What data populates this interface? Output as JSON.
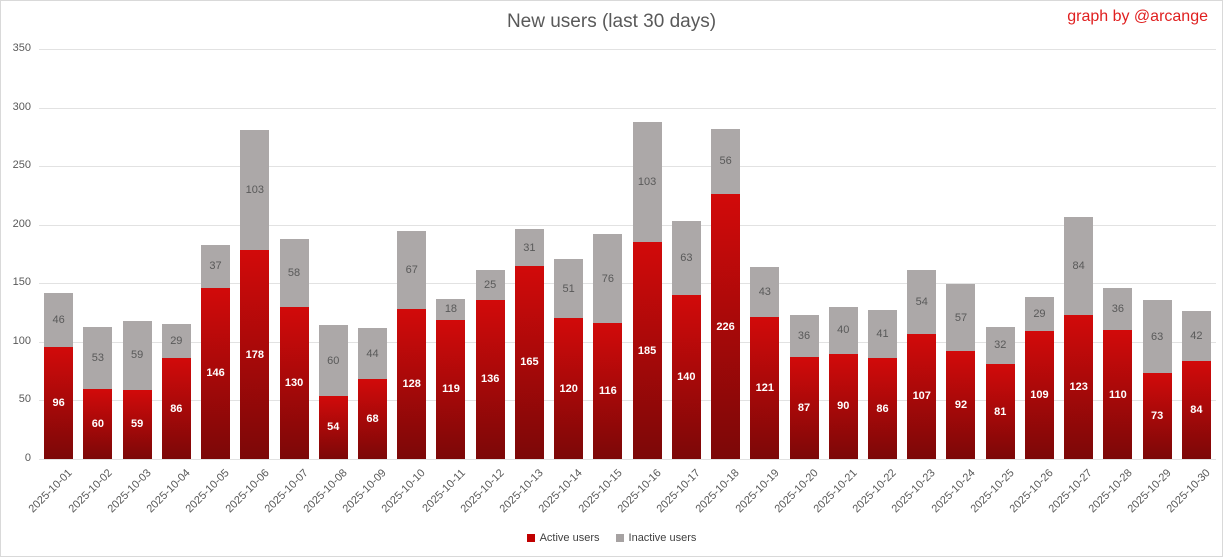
{
  "title": "New users (last 30 days)",
  "attribution": "graph by @arcange",
  "colors": {
    "active_top": "#d20a0a",
    "active_bottom": "#7c0808",
    "inactive": "#aca8a8",
    "legend_active": "#c00000",
    "legend_inactive": "#a6a2a2",
    "gridline": "#e2e2e2",
    "axis_text": "#595959",
    "title_text": "#595959",
    "attribution_text": "#e02020"
  },
  "chart_data": {
    "type": "bar",
    "stacked": true,
    "title": "New users (last 30 days)",
    "xlabel": "",
    "ylabel": "",
    "ylim": [
      0,
      350
    ],
    "yticks": [
      0,
      50,
      100,
      150,
      200,
      250,
      300,
      350
    ],
    "grid": true,
    "legend_position": "bottom",
    "categories": [
      "2025-10-01",
      "2025-10-02",
      "2025-10-03",
      "2025-10-04",
      "2025-10-05",
      "2025-10-06",
      "2025-10-07",
      "2025-10-08",
      "2025-10-09",
      "2025-10-10",
      "2025-10-11",
      "2025-10-12",
      "2025-10-13",
      "2025-10-14",
      "2025-10-15",
      "2025-10-16",
      "2025-10-17",
      "2025-10-18",
      "2025-10-19",
      "2025-10-20",
      "2025-10-21",
      "2025-10-22",
      "2025-10-23",
      "2025-10-24",
      "2025-10-25",
      "2025-10-26",
      "2025-10-27",
      "2025-10-28",
      "2025-10-29",
      "2025-10-30"
    ],
    "series": [
      {
        "name": "Active users",
        "values": [
          96,
          60,
          59,
          86,
          146,
          178,
          130,
          54,
          68,
          128,
          119,
          136,
          165,
          120,
          116,
          185,
          140,
          226,
          121,
          87,
          90,
          86,
          107,
          92,
          81,
          109,
          123,
          110,
          73,
          84
        ]
      },
      {
        "name": "Inactive users",
        "values": [
          46,
          53,
          59,
          29,
          37,
          103,
          58,
          60,
          44,
          67,
          18,
          25,
          31,
          51,
          76,
          103,
          63,
          56,
          43,
          36,
          40,
          41,
          54,
          57,
          32,
          29,
          84,
          36,
          63,
          42
        ]
      }
    ]
  },
  "legend": {
    "items": [
      {
        "label": "Active users"
      },
      {
        "label": "Inactive users"
      }
    ]
  }
}
